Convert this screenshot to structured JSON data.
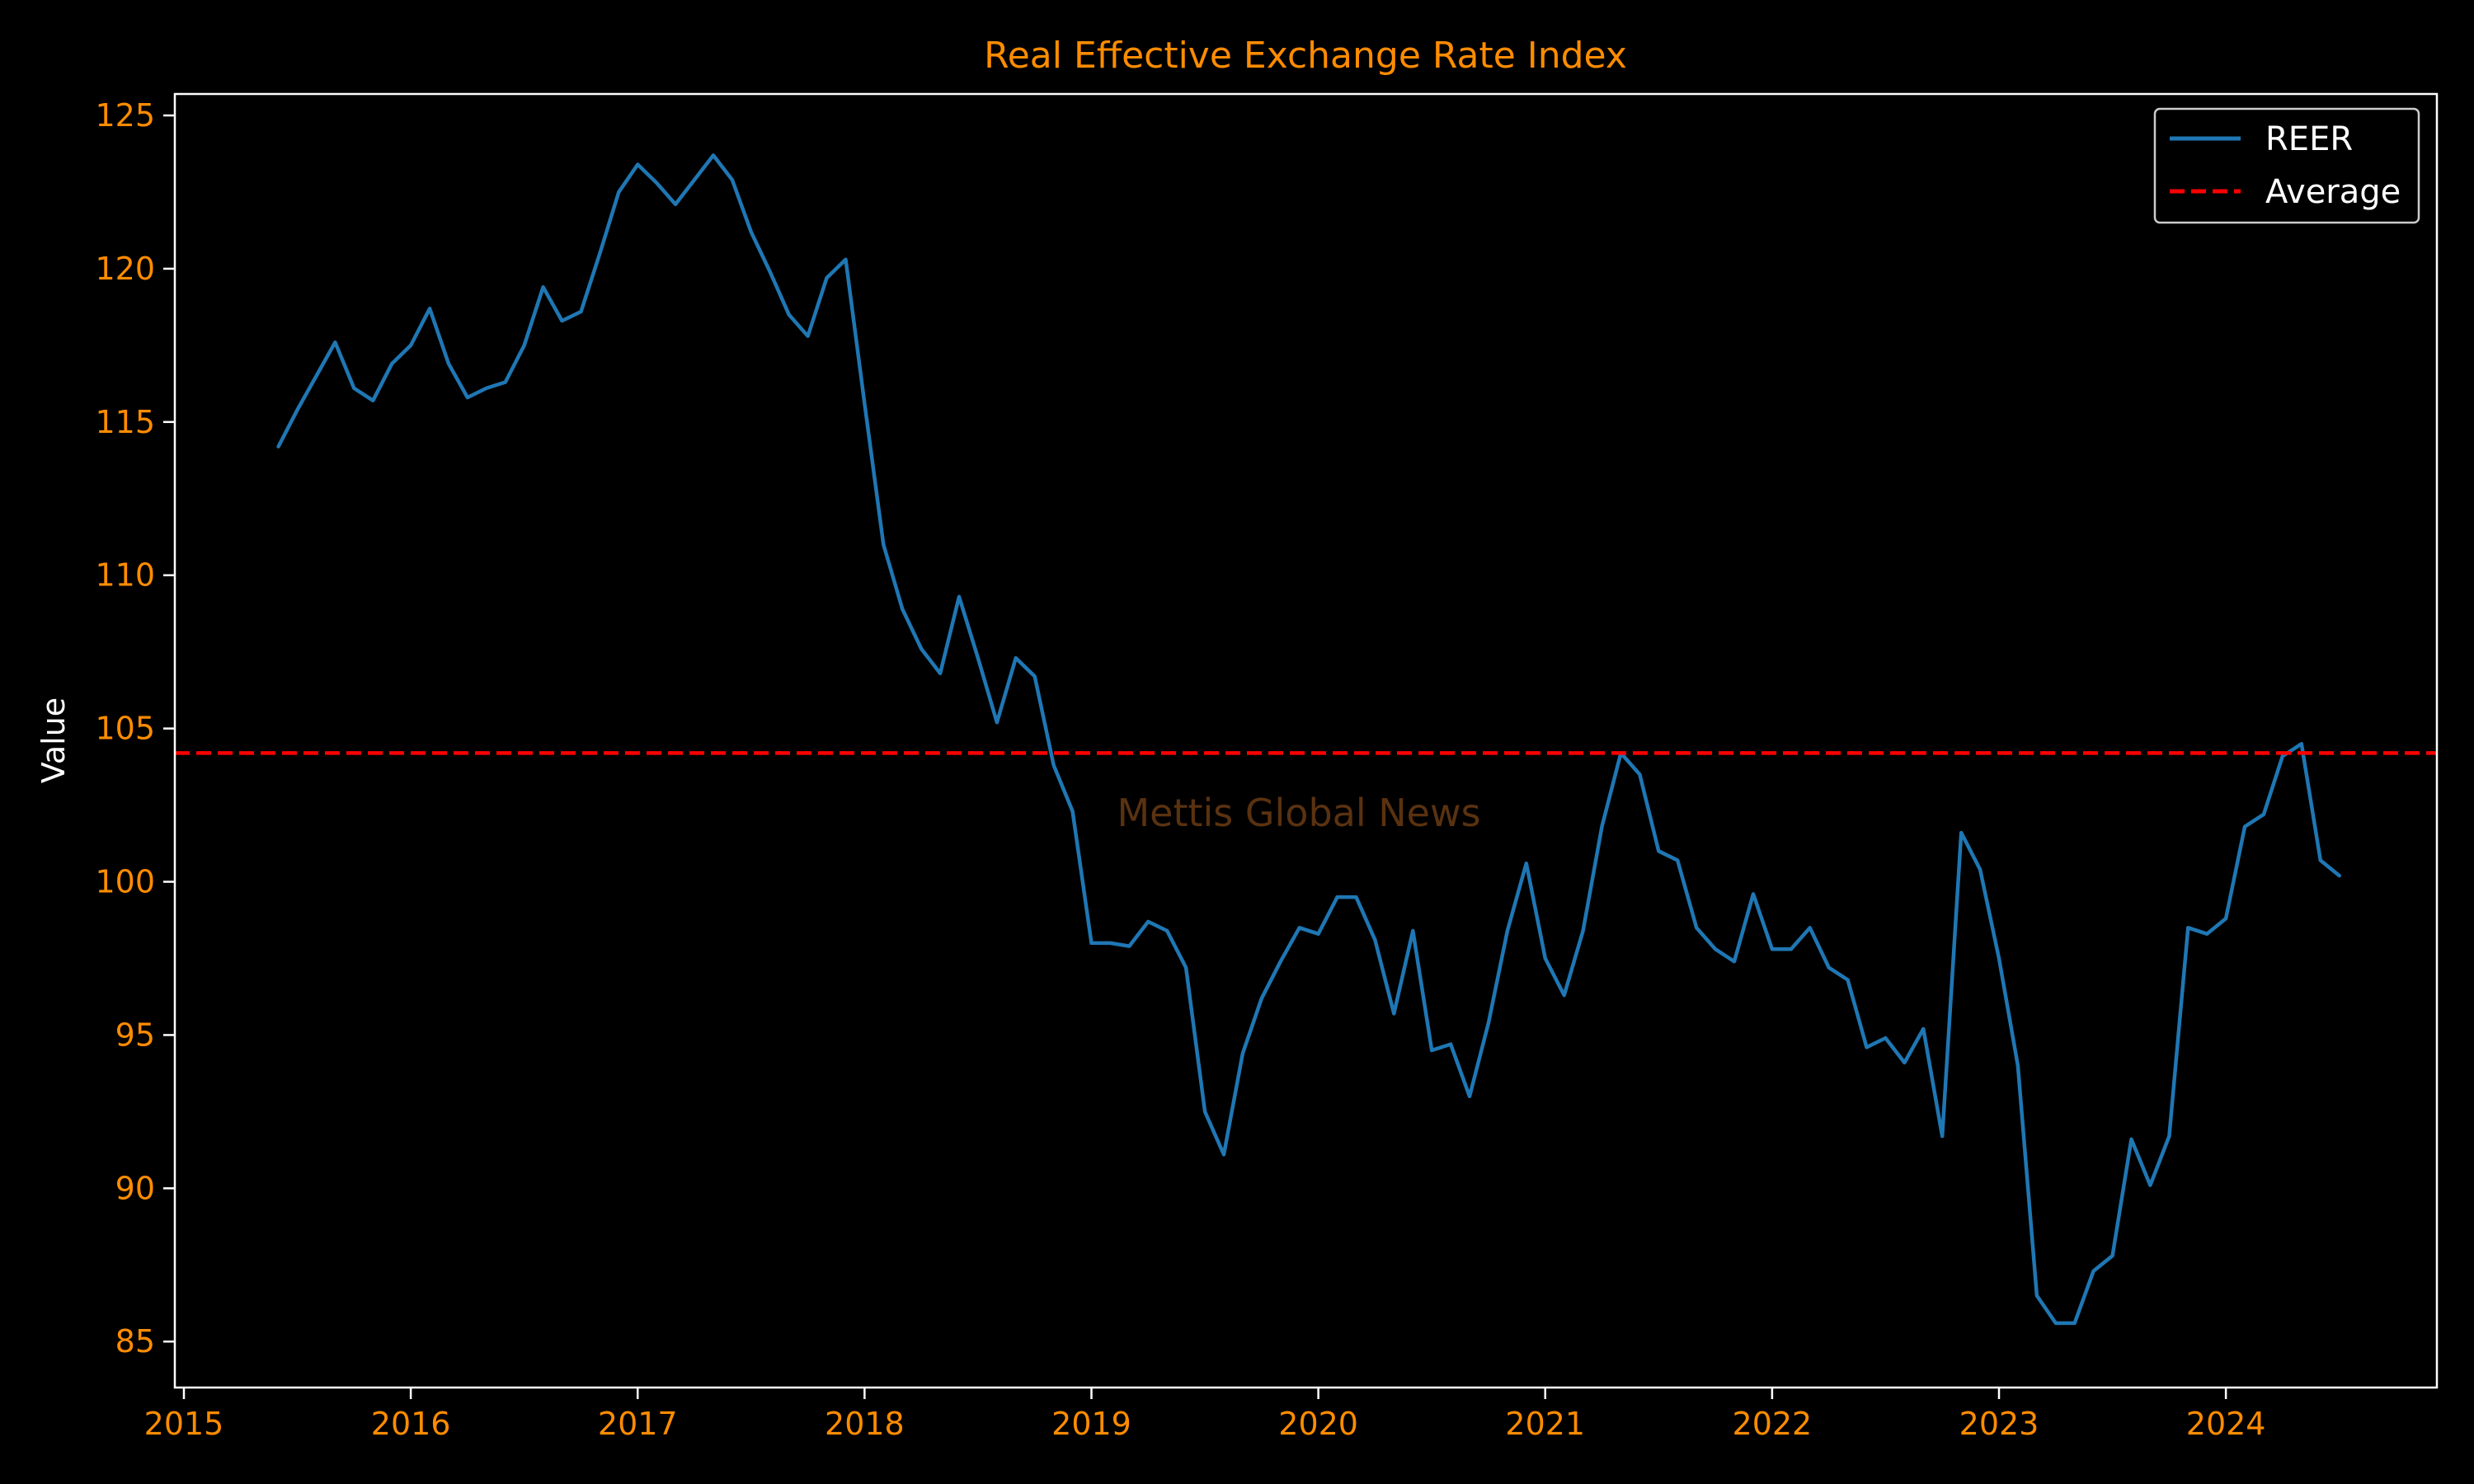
{
  "chart_data": {
    "type": "line",
    "title": "Real Effective Exchange Rate Index",
    "xlabel": "",
    "ylabel": "Value",
    "xlim": [
      2014.96,
      2024.93
    ],
    "ylim": [
      83.5,
      125.7
    ],
    "x_ticks": [
      2015,
      2016,
      2017,
      2018,
      2019,
      2020,
      2021,
      2022,
      2023,
      2024
    ],
    "y_ticks": [
      85,
      90,
      95,
      100,
      105,
      110,
      115,
      120,
      125
    ],
    "grid": false,
    "legend": "top-right",
    "watermark": "Mettis Global News",
    "colors": {
      "background": "#000000",
      "text": "#ff8c00",
      "axes": "#ffffff",
      "series": "#1f77b4",
      "average": "#ff0000",
      "watermark": "#5a3210"
    },
    "series": [
      {
        "name": "REER",
        "style": "solid",
        "start": "2015-06",
        "frequency": "monthly",
        "values": [
          114.2,
          115.4,
          116.5,
          117.6,
          116.1,
          115.7,
          116.9,
          117.5,
          118.7,
          116.9,
          115.8,
          116.1,
          116.3,
          117.5,
          119.4,
          118.3,
          118.6,
          120.5,
          122.5,
          123.4,
          122.8,
          122.1,
          122.9,
          123.7,
          122.9,
          121.2,
          119.9,
          118.5,
          117.8,
          119.7,
          120.3,
          115.6,
          111.0,
          108.9,
          107.6,
          106.8,
          109.3,
          107.3,
          105.2,
          107.3,
          106.7,
          103.8,
          102.3,
          98.0,
          98.0,
          97.9,
          98.7,
          98.4,
          97.2,
          92.5,
          91.1,
          94.4,
          96.2,
          97.4,
          98.5,
          98.3,
          99.5,
          99.5,
          98.1,
          95.7,
          98.4,
          94.5,
          94.7,
          93.0,
          95.4,
          98.4,
          100.6,
          97.5,
          96.3,
          98.4,
          101.8,
          104.2,
          103.5,
          101.0,
          100.7,
          98.5,
          97.8,
          97.4,
          99.6,
          97.8,
          97.8,
          98.5,
          97.2,
          96.8,
          94.6,
          94.9,
          94.1,
          95.2,
          91.7,
          101.6,
          100.4,
          97.5,
          94.0,
          86.5,
          85.6,
          85.6,
          87.3,
          87.8,
          91.6,
          90.1,
          91.7,
          98.5,
          98.3,
          98.8,
          101.8,
          102.2,
          104.1,
          104.5,
          100.7,
          100.2
        ]
      },
      {
        "name": "Average",
        "style": "dashed",
        "value": 104.2
      }
    ]
  }
}
